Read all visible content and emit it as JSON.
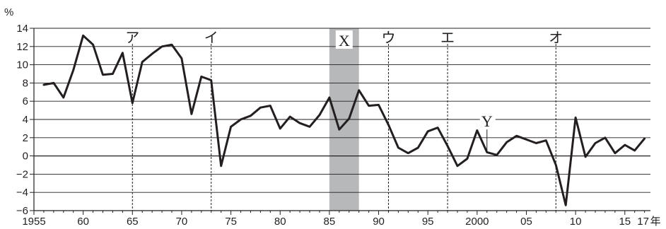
{
  "chart_data": {
    "type": "line",
    "ylabel": "%",
    "xunit": "年",
    "ylim": [
      -6,
      14
    ],
    "xlim": [
      1955,
      2017
    ],
    "yticks": [
      14,
      12,
      10,
      8,
      6,
      4,
      2,
      0,
      -2,
      -4,
      -6
    ],
    "ytick_labels": [
      "14",
      "12",
      "10",
      "8",
      "6",
      "4",
      "2",
      "0",
      "−2",
      "−4",
      "−6"
    ],
    "xticks": [
      1955,
      1960,
      1965,
      1970,
      1975,
      1980,
      1985,
      1990,
      1995,
      2000,
      2005,
      2010,
      2015,
      2017
    ],
    "xtick_labels": [
      "1955",
      "60",
      "65",
      "70",
      "75",
      "80",
      "85",
      "90",
      "95",
      "2000",
      "05",
      "10",
      "15",
      "17"
    ],
    "grid": "horizontal",
    "line_color": "#231f20",
    "shade_color": "#b7b8ba",
    "series": [
      {
        "x": [
          1956,
          1957,
          1958,
          1959,
          1960,
          1961,
          1962,
          1963,
          1964,
          1965,
          1966,
          1967,
          1968,
          1969,
          1970,
          1971,
          1972,
          1973,
          1974,
          1975,
          1976,
          1977,
          1978,
          1979,
          1980,
          1981,
          1982,
          1983,
          1984,
          1985,
          1986,
          1987,
          1988,
          1989,
          1990,
          1991,
          1992,
          1993,
          1994,
          1995,
          1996,
          1997,
          1998,
          1999,
          2000,
          2001,
          2002,
          2003,
          2004,
          2005,
          2006,
          2007,
          2008,
          2009,
          2010,
          2011,
          2012,
          2013,
          2014,
          2015,
          2016,
          2017
        ],
        "values": [
          7.8,
          8.0,
          6.4,
          9.4,
          13.2,
          12.2,
          8.9,
          9.0,
          11.3,
          5.8,
          10.3,
          11.2,
          12.0,
          12.2,
          10.7,
          4.6,
          8.7,
          8.3,
          -1.1,
          3.2,
          4.0,
          4.4,
          5.3,
          5.5,
          3.0,
          4.3,
          3.6,
          3.2,
          4.5,
          6.4,
          2.9,
          4.1,
          7.2,
          5.5,
          5.6,
          3.4,
          0.9,
          0.3,
          0.9,
          2.7,
          3.1,
          1.1,
          -1.1,
          -0.3,
          2.8,
          0.4,
          0.1,
          1.5,
          2.2,
          1.8,
          1.4,
          1.7,
          -1.0,
          -5.4,
          4.2,
          -0.1,
          1.4,
          2.0,
          0.3,
          1.2,
          0.6,
          1.9
        ]
      }
    ],
    "shaded_regions": [
      {
        "label": "X",
        "start": 1985,
        "end": 1988
      }
    ],
    "vertical_markers": [
      {
        "label": "ア",
        "x": 1965
      },
      {
        "label": "イ",
        "x": 1973
      },
      {
        "label": "ウ",
        "x": 1991
      },
      {
        "label": "エ",
        "x": 1997
      },
      {
        "label": "オ",
        "x": 2008
      }
    ],
    "point_annotations": [
      {
        "label": "Y",
        "x": 2001,
        "y": 0.4
      }
    ]
  }
}
